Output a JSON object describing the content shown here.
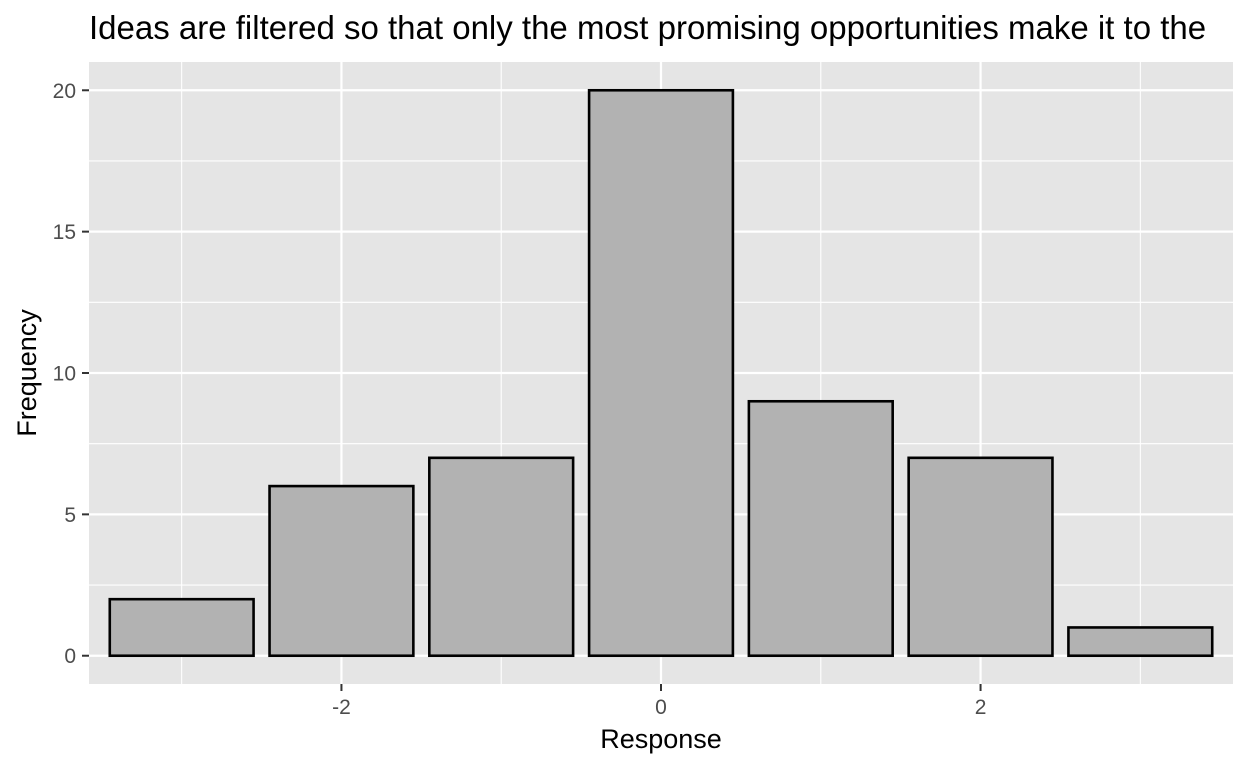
{
  "chart_data": {
    "type": "bar",
    "title": "Ideas are filtered so that only the most promising opportunities make it to the",
    "xlabel": "Response",
    "ylabel": "Frequency",
    "x": [
      -3,
      -2,
      -1,
      0,
      1,
      2,
      3
    ],
    "values": [
      2,
      6,
      7,
      20,
      9,
      7,
      1
    ],
    "xlim": [
      -3.58,
      3.58
    ],
    "ylim": [
      -1,
      21
    ],
    "x_ticks": [
      -2,
      0,
      2
    ],
    "x_tick_labels": [
      "-2",
      "0",
      "2"
    ],
    "y_ticks": [
      0,
      5,
      10,
      15,
      20
    ],
    "y_tick_labels": [
      "0",
      "5",
      "10",
      "15",
      "20"
    ],
    "grid": true,
    "colors": {
      "panel_background": "#e5e5e5",
      "grid_line": "#ffffff",
      "bar_fill": "#b2b2b2",
      "bar_outline": "#000000",
      "tick_label": "#4d4d4d",
      "axis_tick": "#333333"
    }
  }
}
